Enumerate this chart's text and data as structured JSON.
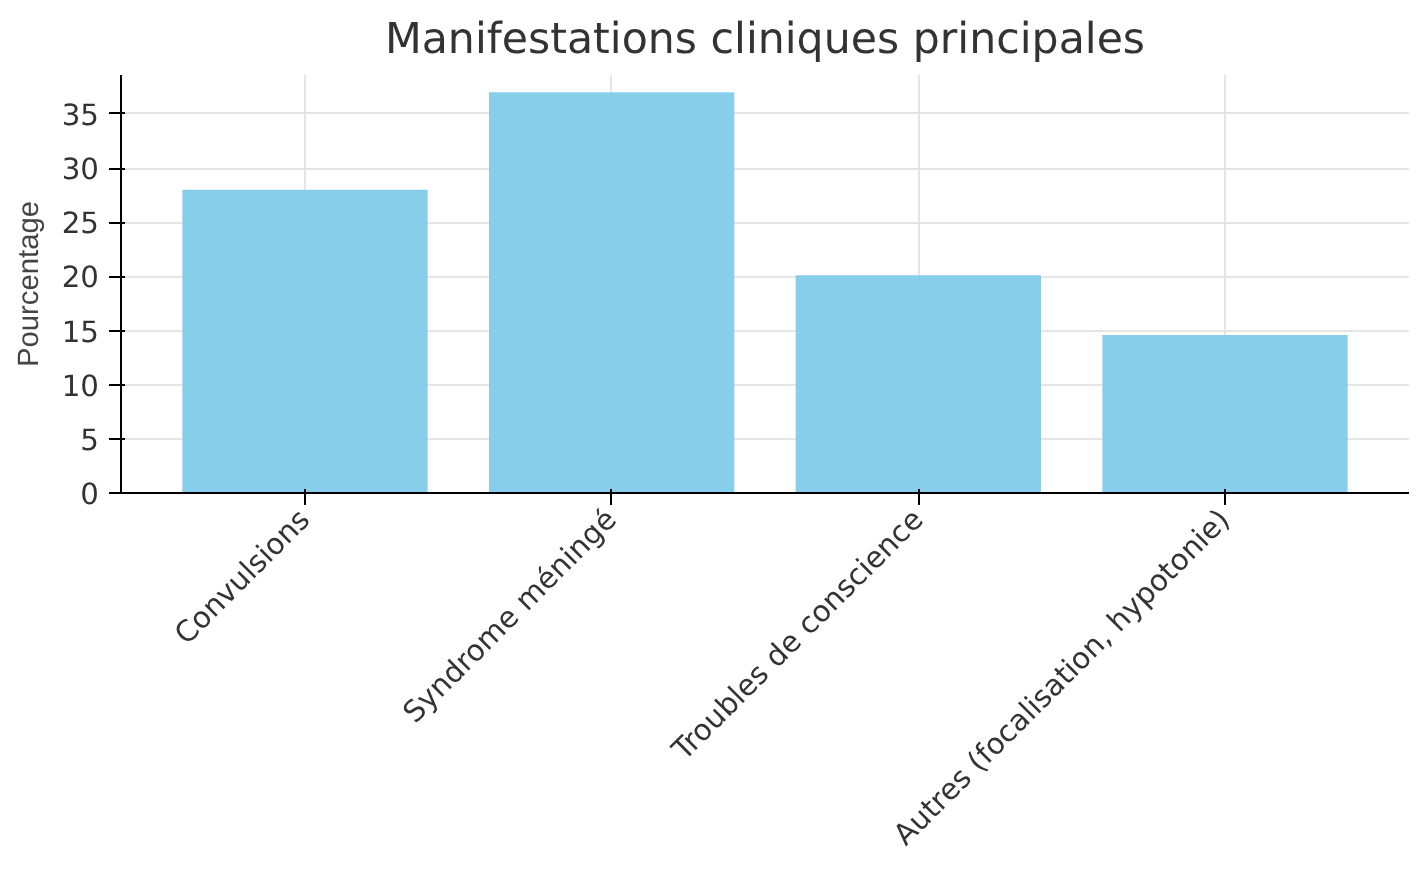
{
  "chart_data": {
    "type": "bar",
    "title": "Manifestations cliniques principales",
    "ylabel": "Pourcentage",
    "categories": [
      "Convulsions",
      "Syndrome méningé",
      "Troubles de conscience",
      "Autres (focalisation, hypotonie)"
    ],
    "values": [
      28,
      37,
      20.1,
      14.6
    ],
    "color": "#87ceeb",
    "ylim": [
      0,
      38.6
    ],
    "yticks": [
      0,
      5,
      10,
      15,
      20,
      25,
      30,
      35
    ],
    "grid": true
  }
}
